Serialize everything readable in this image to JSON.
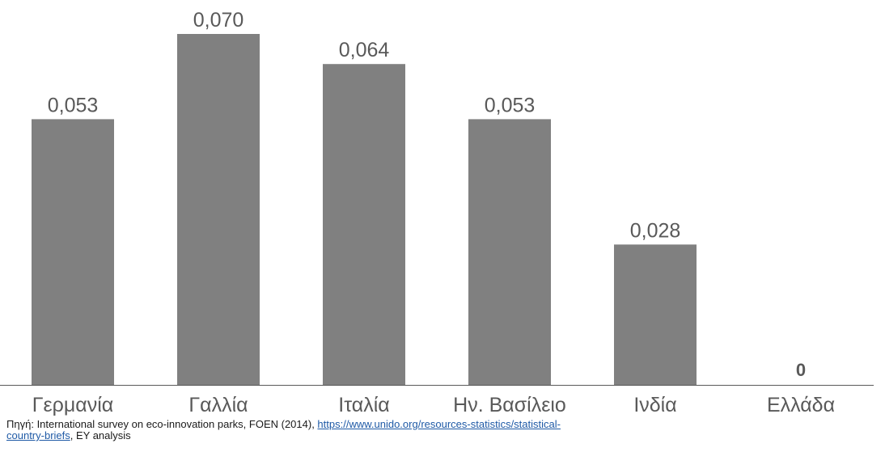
{
  "chart_data": {
    "type": "bar",
    "title": "",
    "xlabel": "",
    "ylabel": "",
    "categories": [
      "Γερμανία",
      "Γαλλία",
      "Ιταλία",
      "Ην. Βασίλειο",
      "Ινδία",
      "Ελλάδα"
    ],
    "values": [
      0.053,
      0.07,
      0.064,
      0.053,
      0.028,
      0
    ],
    "data_labels": [
      "0,053",
      "0,070",
      "0,064",
      "0,053",
      "0,028",
      "0"
    ],
    "ylim": [
      0,
      0.07
    ],
    "grid": false,
    "legend": "none",
    "bar_color": "#808080",
    "axis_color": "#595959",
    "label_color": "#595959"
  },
  "source": {
    "prefix": "Πηγή: International survey on eco-innovation parks, FOEN (2014), ",
    "link_line1": "https://www.unido.org/resources-statistics/statistical-",
    "link_line2": "country-briefs",
    "suffix": ", EY analysis"
  }
}
